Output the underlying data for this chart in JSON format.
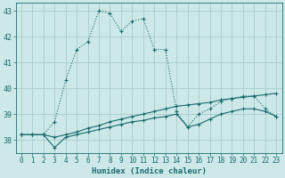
{
  "xlabel": "Humidex (Indice chaleur)",
  "background_color": "#cce8e8",
  "grid_color": "#aacccc",
  "line_color": "#1a6b6b",
  "xlim": [
    -0.5,
    23.5
  ],
  "ylim": [
    37.5,
    43.3
  ],
  "yticks": [
    38,
    39,
    40,
    41,
    42,
    43
  ],
  "xticks": [
    0,
    1,
    2,
    3,
    4,
    5,
    6,
    7,
    8,
    9,
    10,
    11,
    12,
    13,
    14,
    15,
    16,
    17,
    18,
    19,
    20,
    21,
    22,
    23
  ],
  "series1_x": [
    0,
    1,
    2,
    3,
    4,
    5,
    6,
    7,
    8,
    9,
    10,
    11,
    12,
    13,
    14,
    15,
    16,
    17,
    18,
    19,
    20,
    21,
    22,
    23
  ],
  "series1_y": [
    38.2,
    38.2,
    38.2,
    38.7,
    40.3,
    41.5,
    41.8,
    43.0,
    42.9,
    42.2,
    42.6,
    42.7,
    41.5,
    41.5,
    39.1,
    38.5,
    39.0,
    39.2,
    39.5,
    39.6,
    39.7,
    39.7,
    39.2,
    38.9
  ],
  "series2_x": [
    0,
    1,
    2,
    3,
    4,
    5,
    6,
    7,
    8,
    9,
    10,
    11,
    12,
    13,
    14,
    15,
    16,
    17,
    18,
    19,
    20,
    21,
    22,
    23
  ],
  "series2_y": [
    38.2,
    38.2,
    38.2,
    38.1,
    38.2,
    38.3,
    38.45,
    38.55,
    38.7,
    38.8,
    38.9,
    39.0,
    39.1,
    39.2,
    39.3,
    39.35,
    39.4,
    39.45,
    39.55,
    39.6,
    39.65,
    39.7,
    39.75,
    39.8
  ],
  "series3_x": [
    0,
    1,
    2,
    3,
    4,
    5,
    6,
    7,
    8,
    9,
    10,
    11,
    12,
    13,
    14,
    15,
    16,
    17,
    18,
    19,
    20,
    21,
    22,
    23
  ],
  "series3_y": [
    38.2,
    38.2,
    38.2,
    37.7,
    38.1,
    38.2,
    38.3,
    38.4,
    38.5,
    38.6,
    38.7,
    38.75,
    38.85,
    38.9,
    39.0,
    38.5,
    38.6,
    38.8,
    39.0,
    39.1,
    39.2,
    39.2,
    39.1,
    38.9
  ]
}
